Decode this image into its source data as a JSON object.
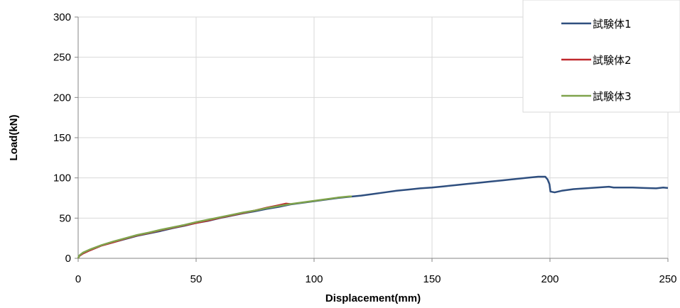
{
  "chart_data": {
    "type": "line",
    "title": "",
    "xlabel": "Displacement(mm)",
    "ylabel": "Load(kN)",
    "xlim": [
      0,
      250
    ],
    "ylim": [
      0,
      300
    ],
    "x_ticks": [
      0,
      50,
      100,
      150,
      200,
      250
    ],
    "y_ticks": [
      0,
      50,
      100,
      150,
      200,
      250,
      300
    ],
    "grid": true,
    "legend_position": "top-right",
    "series": [
      {
        "name": "試験体1",
        "color": "#2f4f7f",
        "points": [
          [
            0,
            0
          ],
          [
            0.5,
            3
          ],
          [
            2,
            6
          ],
          [
            5,
            10
          ],
          [
            10,
            16
          ],
          [
            15,
            20
          ],
          [
            20,
            24
          ],
          [
            25,
            28
          ],
          [
            30,
            31
          ],
          [
            35,
            34
          ],
          [
            40,
            37.5
          ],
          [
            45,
            40.5
          ],
          [
            50,
            44
          ],
          [
            55,
            46.5
          ],
          [
            60,
            50
          ],
          [
            65,
            53
          ],
          [
            70,
            56
          ],
          [
            75,
            58.5
          ],
          [
            80,
            61.5
          ],
          [
            85,
            64
          ],
          [
            90,
            67
          ],
          [
            95,
            69
          ],
          [
            100,
            71
          ],
          [
            105,
            73
          ],
          [
            110,
            75
          ],
          [
            115,
            76.5
          ],
          [
            120,
            78
          ],
          [
            125,
            80
          ],
          [
            130,
            82
          ],
          [
            135,
            84
          ],
          [
            140,
            85.5
          ],
          [
            145,
            87
          ],
          [
            150,
            88
          ],
          [
            155,
            89.5
          ],
          [
            160,
            91
          ],
          [
            165,
            92.5
          ],
          [
            170,
            94
          ],
          [
            175,
            95.5
          ],
          [
            180,
            97
          ],
          [
            185,
            98.5
          ],
          [
            190,
            100
          ],
          [
            195,
            101.5
          ],
          [
            198,
            101.5
          ],
          [
            199,
            98
          ],
          [
            199.8,
            92
          ],
          [
            200.2,
            83
          ],
          [
            202,
            82
          ],
          [
            205,
            84
          ],
          [
            210,
            86
          ],
          [
            215,
            87
          ],
          [
            220,
            88
          ],
          [
            225,
            89
          ],
          [
            227,
            88
          ],
          [
            230,
            88
          ],
          [
            235,
            88
          ],
          [
            240,
            87.5
          ],
          [
            245,
            87
          ],
          [
            248,
            88
          ],
          [
            250,
            87.5
          ]
        ]
      },
      {
        "name": "試験体2",
        "color": "#c0282d",
        "points": [
          [
            0,
            0
          ],
          [
            0.5,
            3
          ],
          [
            2,
            6
          ],
          [
            5,
            10
          ],
          [
            10,
            16
          ],
          [
            15,
            20
          ],
          [
            20,
            24.5
          ],
          [
            25,
            28.5
          ],
          [
            30,
            31.5
          ],
          [
            35,
            35
          ],
          [
            40,
            38
          ],
          [
            45,
            41
          ],
          [
            50,
            44
          ],
          [
            55,
            47
          ],
          [
            60,
            50.5
          ],
          [
            65,
            53.5
          ],
          [
            70,
            56.5
          ],
          [
            75,
            59.5
          ],
          [
            80,
            63
          ],
          [
            85,
            66
          ],
          [
            88,
            68
          ],
          [
            90,
            67.5
          ]
        ]
      },
      {
        "name": "試験体3",
        "color": "#7fa34c",
        "points": [
          [
            0,
            0
          ],
          [
            0.5,
            3.5
          ],
          [
            2,
            7
          ],
          [
            5,
            11
          ],
          [
            10,
            16.5
          ],
          [
            15,
            21
          ],
          [
            20,
            25
          ],
          [
            25,
            29
          ],
          [
            30,
            32
          ],
          [
            35,
            35.5
          ],
          [
            40,
            38.5
          ],
          [
            45,
            41.5
          ],
          [
            50,
            45
          ],
          [
            55,
            48
          ],
          [
            60,
            51
          ],
          [
            65,
            54
          ],
          [
            70,
            57
          ],
          [
            75,
            59.5
          ],
          [
            80,
            62.5
          ],
          [
            85,
            65
          ],
          [
            90,
            67.5
          ],
          [
            95,
            69.5
          ],
          [
            100,
            71.5
          ],
          [
            105,
            73.5
          ],
          [
            110,
            75.5
          ],
          [
            115,
            77
          ],
          [
            116,
            77
          ]
        ]
      }
    ]
  }
}
